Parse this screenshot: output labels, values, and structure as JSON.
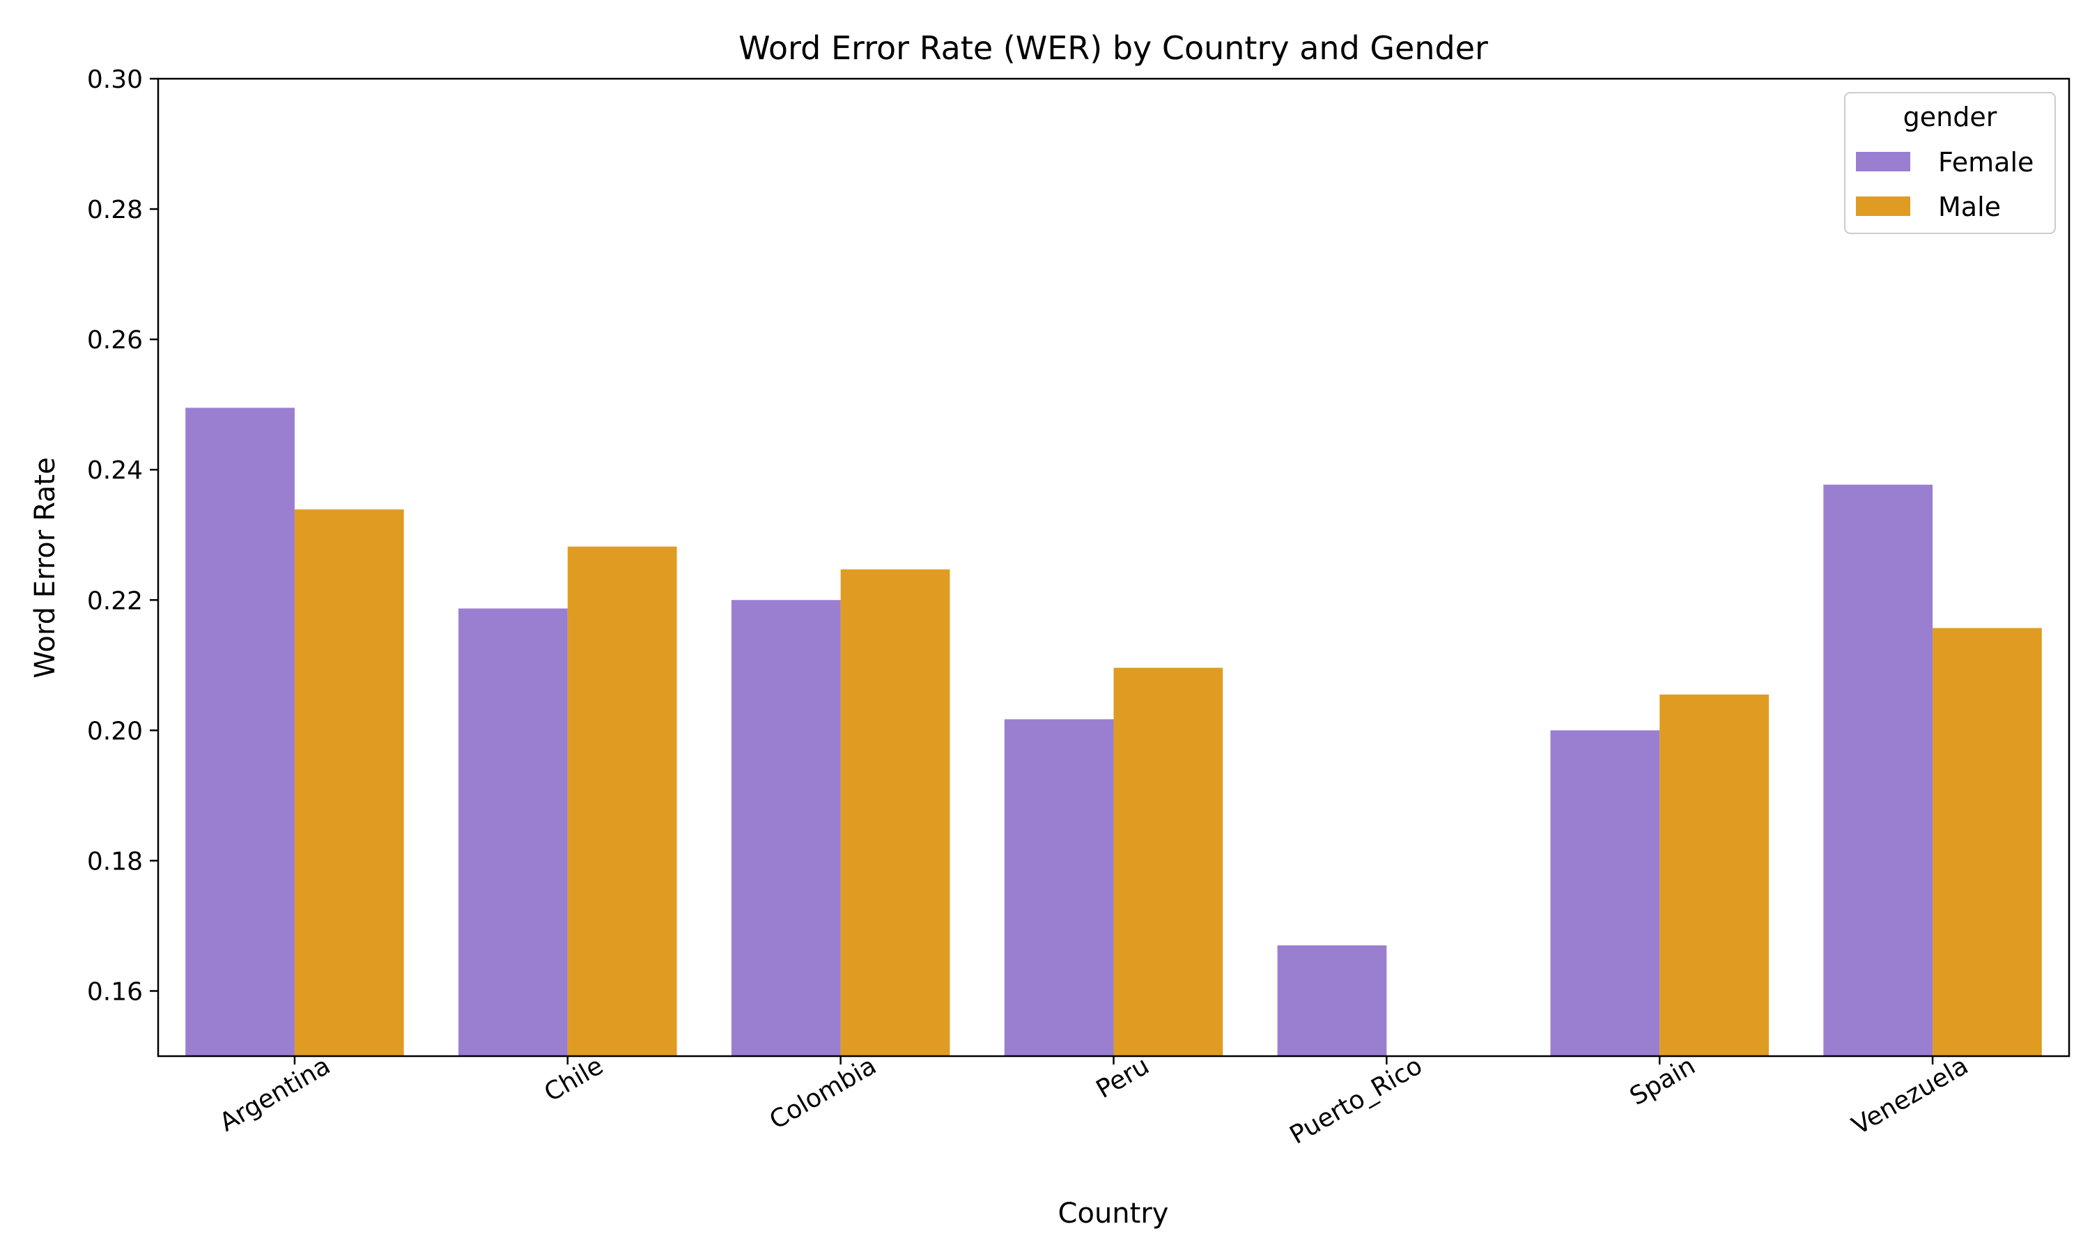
{
  "chart_data": {
    "type": "bar",
    "title": "Word Error Rate (WER) by Country and Gender",
    "xlabel": "Country",
    "ylabel": "Word Error Rate",
    "ylim": [
      0.15,
      0.3
    ],
    "yticks": [
      "0.16",
      "0.18",
      "0.20",
      "0.22",
      "0.24",
      "0.26",
      "0.28",
      "0.30"
    ],
    "categories": [
      "Argentina",
      "Chile",
      "Colombia",
      "Peru",
      "Puerto_Rico",
      "Spain",
      "Venezuela"
    ],
    "series": [
      {
        "name": "Female",
        "color": "#9a7fd0",
        "values": [
          0.2495,
          0.2187,
          0.22,
          0.2017,
          0.167,
          0.2,
          0.2377
        ]
      },
      {
        "name": "Male",
        "color": "#e09c22",
        "values": [
          0.2339,
          0.2282,
          0.2247,
          0.2096,
          null,
          0.2055,
          0.2157
        ]
      }
    ],
    "legend": {
      "title": "gender",
      "placement": "top-right"
    },
    "grid": false
  }
}
